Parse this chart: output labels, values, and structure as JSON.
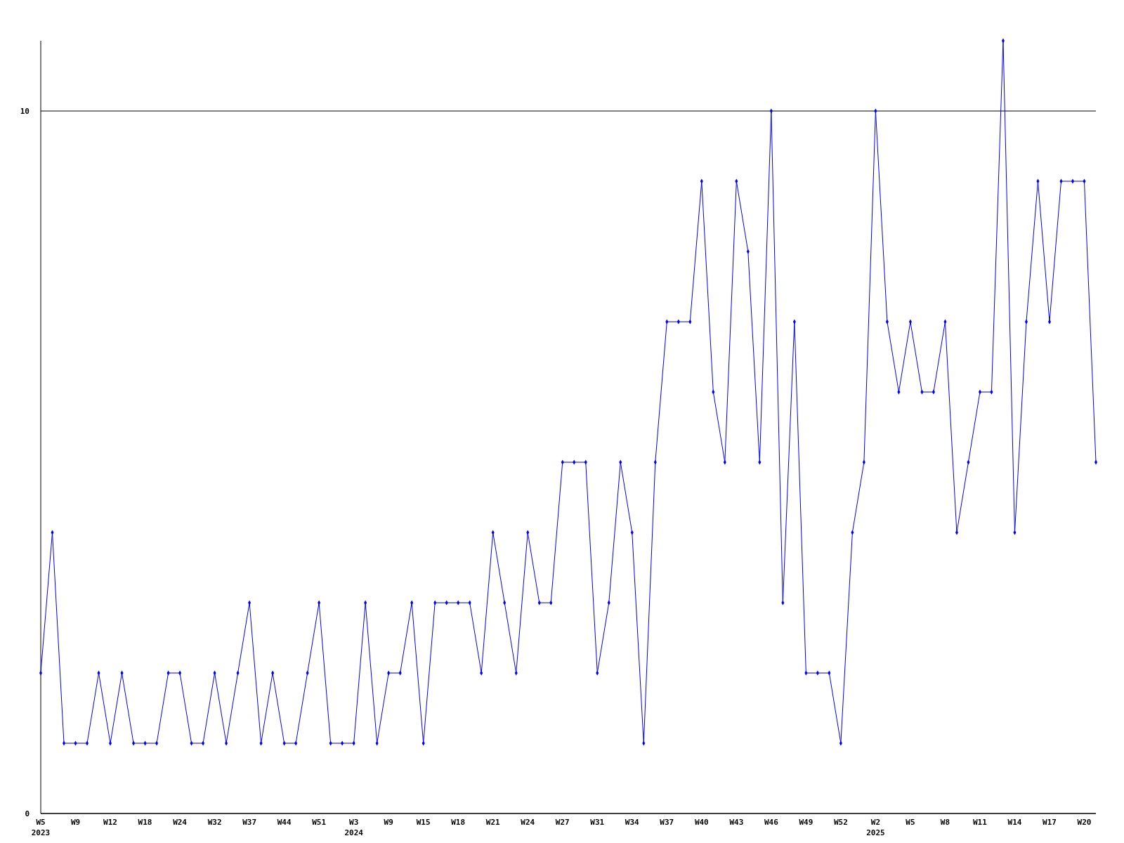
{
  "chart_data": {
    "type": "line",
    "categories": [
      "W5\n2023",
      null,
      null,
      "W9",
      null,
      null,
      "W12",
      null,
      null,
      "W18",
      null,
      null,
      "W24",
      null,
      null,
      "W32",
      null,
      null,
      "W37",
      null,
      null,
      "W44",
      null,
      null,
      "W51",
      null,
      null,
      "W3\n2024",
      null,
      null,
      "W9",
      null,
      null,
      "W15",
      null,
      null,
      "W18",
      null,
      null,
      "W21",
      null,
      null,
      "W24",
      null,
      null,
      "W27",
      null,
      null,
      "W31",
      null,
      null,
      "W34",
      null,
      null,
      "W37",
      null,
      null,
      "W40",
      null,
      null,
      "W43",
      null,
      null,
      "W46",
      null,
      null,
      "W49",
      null,
      null,
      "W52",
      null,
      null,
      "W2\n2025",
      null,
      null,
      "W5",
      null,
      null,
      "W8",
      null,
      null,
      "W11",
      null,
      null,
      "W14",
      null,
      null,
      "W17",
      null,
      null,
      "W20",
      null
    ],
    "series": [
      {
        "color": "#0000ff",
        "values": [
          2,
          4,
          1,
          1,
          1,
          2,
          1,
          2,
          1,
          1,
          1,
          2,
          2,
          1,
          1,
          2,
          1,
          2,
          3,
          1,
          2,
          1,
          1,
          2,
          3,
          1,
          1,
          1,
          3,
          1,
          2,
          2,
          3,
          1,
          3,
          3,
          3,
          3,
          2,
          4,
          3,
          2,
          4,
          3,
          3,
          5,
          5,
          5,
          2,
          3,
          5,
          4,
          1,
          5,
          7,
          7,
          7,
          9,
          6,
          5,
          9,
          8,
          5,
          10,
          3,
          7,
          2,
          2,
          2,
          1,
          4,
          5,
          10,
          7,
          6,
          7,
          6,
          6,
          7,
          4,
          5,
          6,
          6,
          11,
          4,
          7,
          9,
          7,
          9,
          9,
          9,
          5
        ]
      }
    ],
    "ylim": [
      0,
      11
    ],
    "yticks": [
      0,
      10
    ],
    "grid": "y",
    "marker": "diamond",
    "line_style": "solid"
  }
}
